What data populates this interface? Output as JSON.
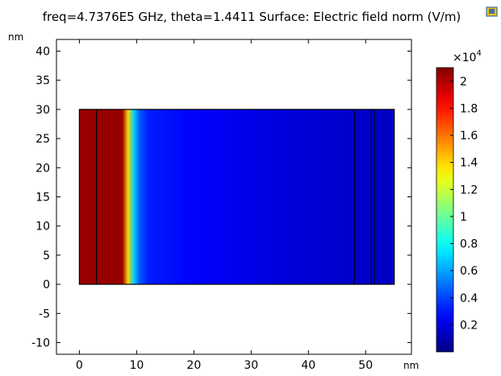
{
  "chart_data": {
    "type": "heatmap",
    "title": "freq=4.7376E5 GHz, theta=1.4411  Surface: Electric field norm (V/m)",
    "x_unit": "nm",
    "y_unit": "nm",
    "xlim": [
      -4,
      58
    ],
    "ylim": [
      -12,
      42
    ],
    "x_ticks": [
      0,
      10,
      20,
      30,
      40,
      50
    ],
    "y_ticks": [
      40,
      35,
      30,
      25,
      20,
      15,
      10,
      5,
      0,
      -5,
      -10
    ],
    "geometry": {
      "x_range": [
        0,
        55
      ],
      "y_range": [
        0,
        30
      ],
      "boundaries_x": [
        3,
        48,
        51,
        51.5
      ]
    },
    "field_profile": {
      "x": [
        0,
        3,
        7.5,
        8.5,
        9.5,
        10.5,
        12,
        20,
        35,
        55
      ],
      "value": [
        20500,
        20500,
        20500,
        14000,
        7000,
        4500,
        3200,
        2600,
        1900,
        1400
      ]
    },
    "colorbar": {
      "multiplier": "×10",
      "exponent": "4",
      "range": [
        0,
        21000
      ],
      "ticks": [
        2,
        1.8,
        1.6,
        1.4,
        1.2,
        1,
        0.8,
        0.6,
        0.4,
        0.2
      ],
      "scale": 10000,
      "colormap": "jet"
    }
  }
}
